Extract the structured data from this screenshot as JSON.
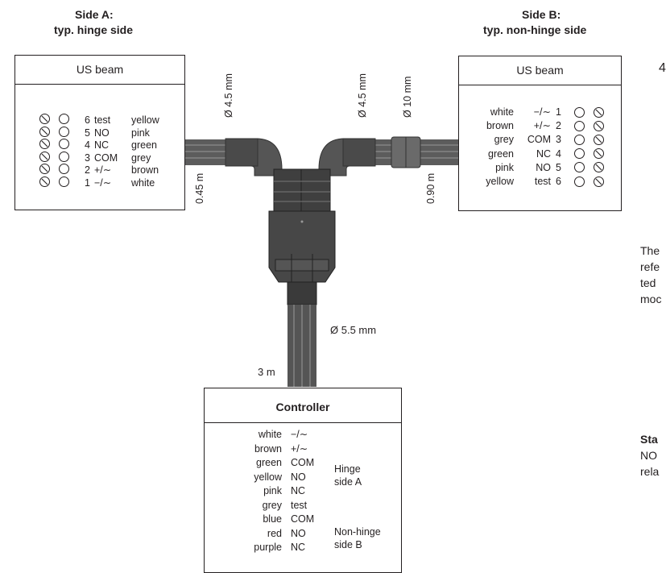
{
  "side_a": {
    "title": "Side A:",
    "subtitle": "typ. hinge side",
    "box_title": "US beam",
    "rows": [
      {
        "num": "6",
        "sig": "test",
        "color": "yellow"
      },
      {
        "num": "5",
        "sig": "NO",
        "color": "pink"
      },
      {
        "num": "4",
        "sig": "NC",
        "color": "green"
      },
      {
        "num": "3",
        "sig": "COM",
        "color": "grey"
      },
      {
        "num": "2",
        "sig": "+/∼",
        "color": "brown"
      },
      {
        "num": "1",
        "sig": "−/∼",
        "color": "white"
      }
    ]
  },
  "side_b": {
    "title": "Side B:",
    "subtitle": "typ. non-hinge side",
    "box_title": "US beam",
    "rows": [
      {
        "color": "white",
        "sig": "−/∼",
        "num": "1"
      },
      {
        "color": "brown",
        "sig": "+/∼",
        "num": "2"
      },
      {
        "color": "grey",
        "sig": "COM",
        "num": "3"
      },
      {
        "color": "green",
        "sig": "NC",
        "num": "4"
      },
      {
        "color": "pink",
        "sig": "NO",
        "num": "5"
      },
      {
        "color": "yellow",
        "sig": "test",
        "num": "6"
      }
    ]
  },
  "dims": {
    "left_dia": "Ø 4.5 mm",
    "right_dia": "Ø 4.5 mm",
    "ferrite_dia": "Ø 10 mm",
    "left_len": "0.45 m",
    "right_len": "0.90 m",
    "main_dia": "Ø 5.5 mm",
    "main_len": "3 m"
  },
  "controller": {
    "title": "Controller",
    "rows": [
      {
        "color": "white",
        "sig": "−/∼"
      },
      {
        "color": "brown",
        "sig": "+/∼"
      },
      {
        "color": "green",
        "sig": "COM"
      },
      {
        "color": "yellow",
        "sig": "NO"
      },
      {
        "color": "pink",
        "sig": "NC"
      },
      {
        "color": "grey",
        "sig": "test"
      },
      {
        "color": "blue",
        "sig": "COM"
      },
      {
        "color": "red",
        "sig": "NO"
      },
      {
        "color": "purple",
        "sig": "NC"
      }
    ],
    "group_a": [
      "Hinge",
      "side A"
    ],
    "group_b": [
      "Non-hinge",
      "side B"
    ]
  },
  "side_text": {
    "lines": [
      "The",
      "refe",
      "ted",
      "moc"
    ],
    "heading": "Sta",
    "lines2": [
      "NO",
      "rela"
    ],
    "mark": "4"
  }
}
